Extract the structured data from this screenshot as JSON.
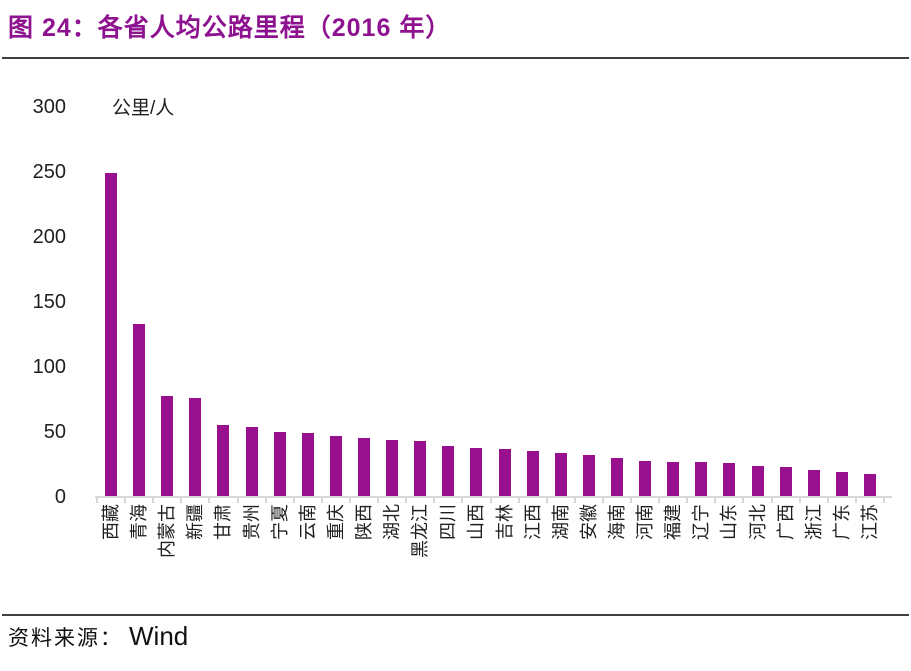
{
  "title": "图 24：各省人均公路里程（2016 年）",
  "unit_label": "公里/人",
  "source": {
    "prefix": "资料来源：",
    "text": "Wind"
  },
  "colors": {
    "title": "#8E1190",
    "bar": "#98108E",
    "axis": "#D8D8D8",
    "rule": "#3F3F3F"
  },
  "chart_data": {
    "type": "bar",
    "title": "各省人均公路里程（2016 年）",
    "ylabel": "公里/人",
    "xlabel": "",
    "ylim": [
      0,
      300
    ],
    "yticks": [
      0,
      50,
      100,
      150,
      200,
      250,
      300
    ],
    "grid": false,
    "legend": "none",
    "categories": [
      "西藏",
      "青海",
      "内蒙古",
      "新疆",
      "甘肃",
      "贵州",
      "宁夏",
      "云南",
      "重庆",
      "陕西",
      "湖北",
      "黑龙江",
      "四川",
      "山西",
      "吉林",
      "江西",
      "湖南",
      "安徽",
      "海南",
      "河南",
      "福建",
      "辽宁",
      "山东",
      "河北",
      "广西",
      "浙江",
      "广东",
      "江苏"
    ],
    "values": [
      249,
      133,
      78,
      76,
      55,
      54,
      50,
      49,
      47,
      45,
      44,
      43,
      39,
      38,
      37,
      35,
      34,
      32,
      30,
      28,
      27,
      27,
      26,
      24,
      23,
      21,
      19,
      18
    ]
  }
}
